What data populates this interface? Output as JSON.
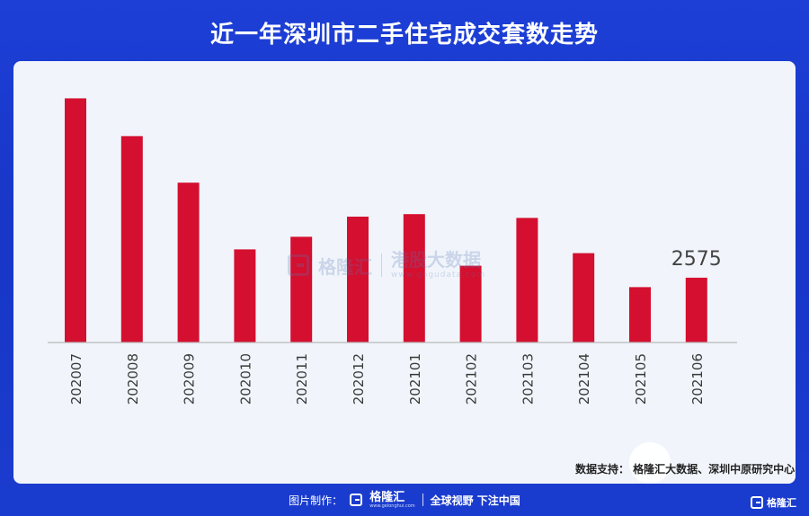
{
  "header": {
    "title": "近一年深圳市二手住宅成交套数走势"
  },
  "chart_data": {
    "type": "bar",
    "categories": [
      "202007",
      "202008",
      "202009",
      "202010",
      "202011",
      "202012",
      "202101",
      "202102",
      "202103",
      "202104",
      "202105",
      "202106"
    ],
    "values": [
      9700,
      8200,
      6350,
      3700,
      4200,
      5000,
      5100,
      3050,
      4950,
      3550,
      2200,
      2575
    ],
    "annotations": [
      {
        "category": "202106",
        "text": "2575"
      }
    ],
    "ylim": [
      0,
      11000
    ],
    "grid": false,
    "legend": "none",
    "bar_color": "#d40f2f"
  },
  "source": {
    "text": "数据支持：   格隆汇大数据、深圳中原研究中心"
  },
  "watermark": {
    "brand": "格隆汇",
    "name": "港股大数据",
    "url": "www.gogudata.com"
  },
  "footer": {
    "made_by": "图片制作：",
    "brand": "格隆汇",
    "brand_url": "www.gelonghui.com",
    "slogan": "全球视野 下注中国"
  },
  "corner": {
    "brand": "格隆汇"
  },
  "colors": {
    "background": "#1a3cce",
    "panel": "#f1f5fb",
    "bar": "#d40f2f"
  }
}
